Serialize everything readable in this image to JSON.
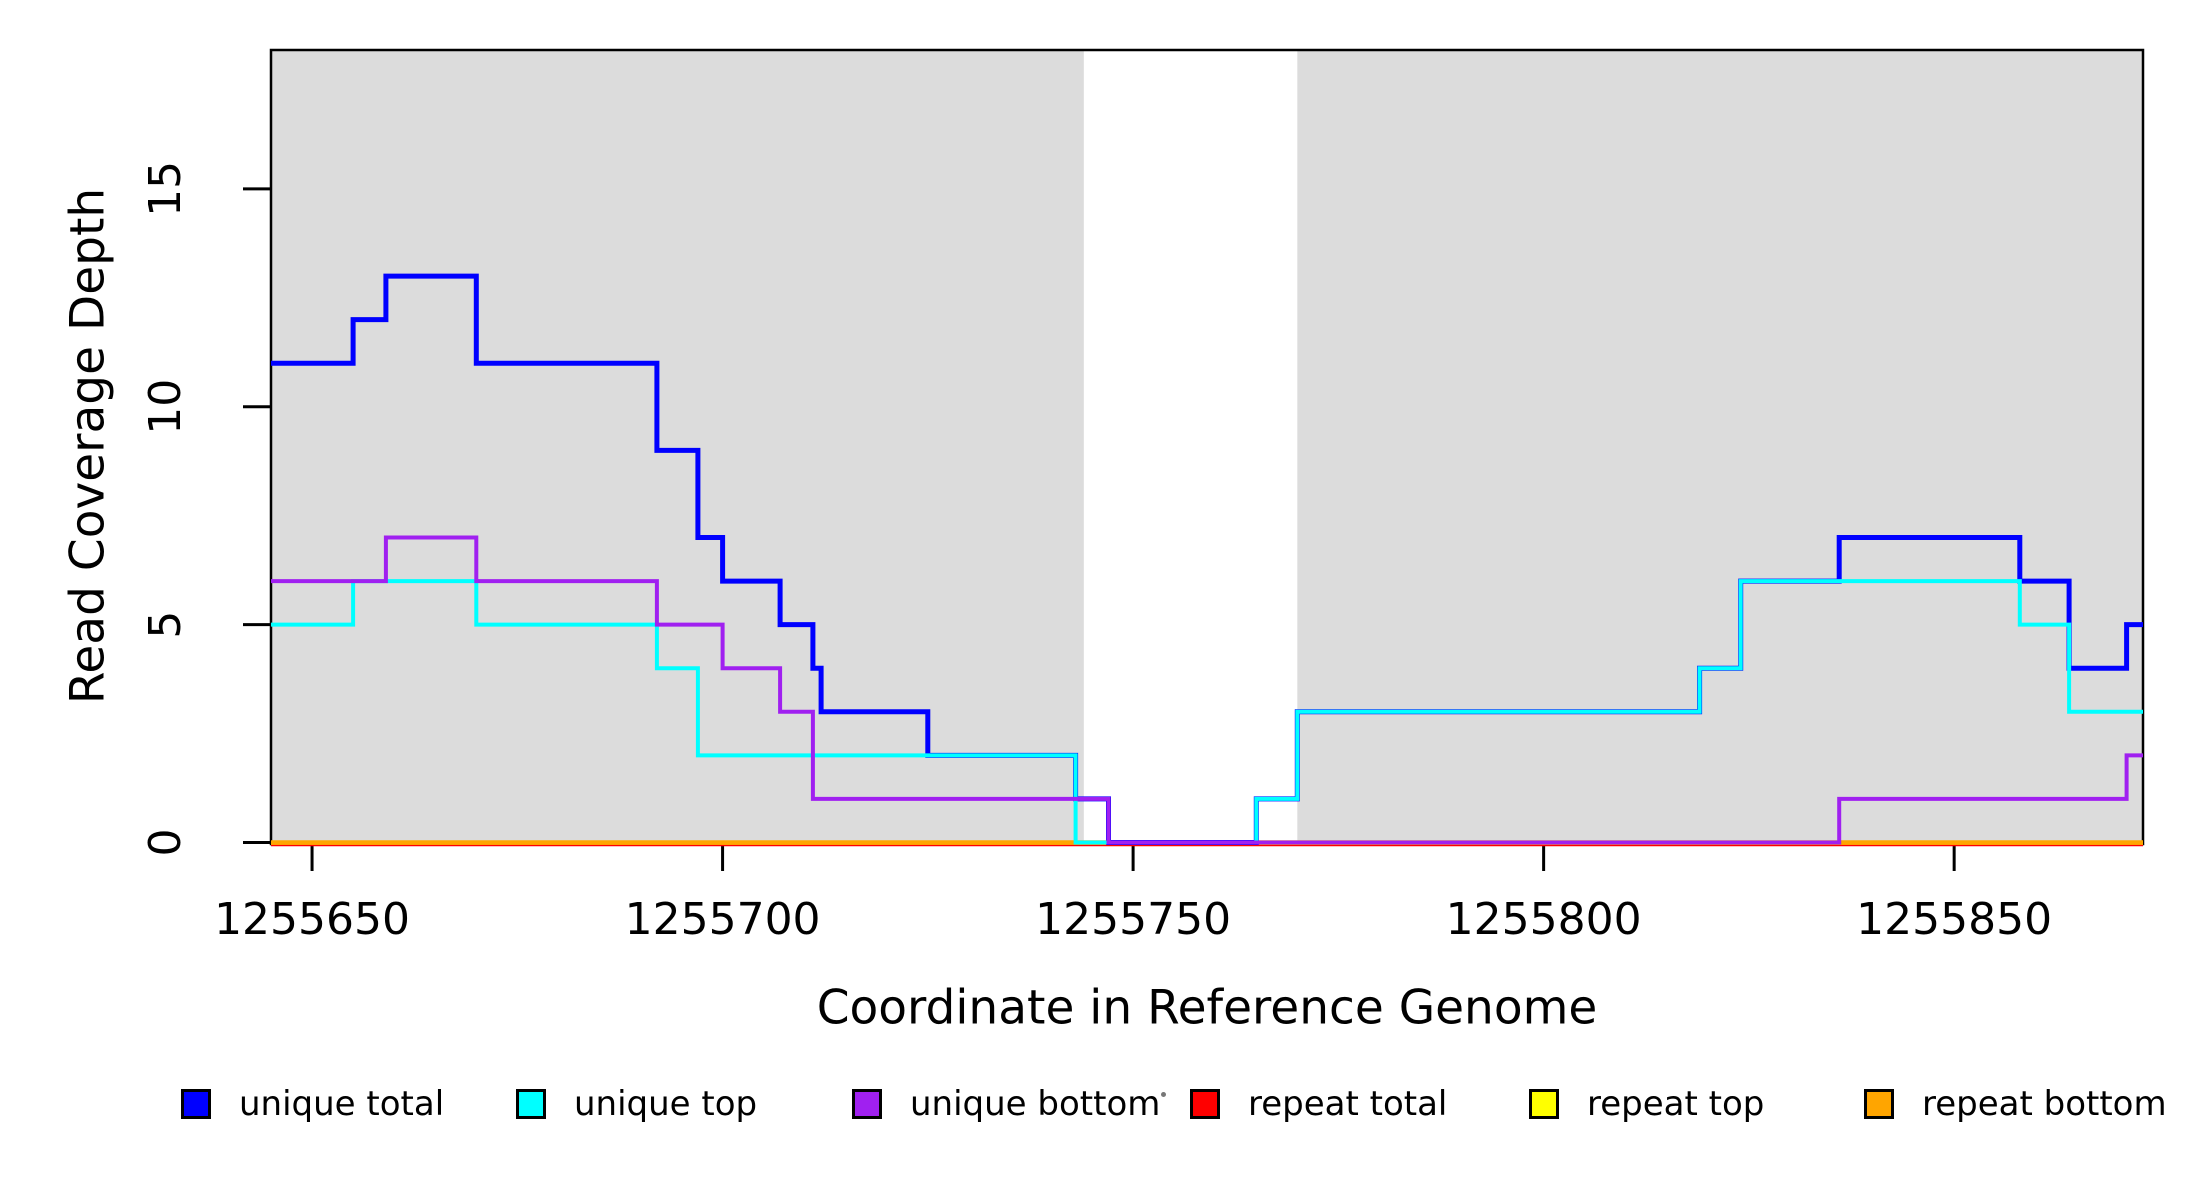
{
  "chart_data": {
    "type": "step-line",
    "title": "",
    "xlabel": "Coordinate in Reference Genome",
    "ylabel": "Read Coverage Depth",
    "x_domain": [
      1255645,
      1255873
    ],
    "y_domain": [
      0,
      18.2
    ],
    "x_ticks": [
      {
        "value": 1255650,
        "label": "1255650"
      },
      {
        "value": 1255700,
        "label": "1255700"
      },
      {
        "value": 1255750,
        "label": "1255750"
      },
      {
        "value": 1255800,
        "label": "1255800"
      },
      {
        "value": 1255850,
        "label": "1255850"
      }
    ],
    "y_ticks": [
      {
        "value": 0,
        "label": "0"
      },
      {
        "value": 5,
        "label": "5"
      },
      {
        "value": 10,
        "label": "10"
      },
      {
        "value": 15,
        "label": "15"
      }
    ],
    "grid": false,
    "shade_color": "#DCDCDC",
    "shaded_regions": [
      {
        "from": 1255645,
        "to": 1255744
      },
      {
        "from": 1255770,
        "to": 1255873
      }
    ],
    "series": [
      {
        "name": "repeat total",
        "color": "#FF0000",
        "points": [
          [
            1255645,
            0
          ],
          [
            1255873,
            0
          ]
        ]
      },
      {
        "name": "repeat top",
        "color": "#FFFF00",
        "points": [
          [
            1255645,
            0
          ],
          [
            1255873,
            0
          ]
        ]
      },
      {
        "name": "repeat bottom",
        "color": "#FFA500",
        "points": [
          [
            1255645,
            0
          ],
          [
            1255873,
            0
          ]
        ]
      },
      {
        "name": "unique total",
        "color": "#0000FF",
        "points": [
          [
            1255645,
            11
          ],
          [
            1255655,
            12
          ],
          [
            1255659,
            13
          ],
          [
            1255670,
            11
          ],
          [
            1255692,
            9
          ],
          [
            1255697,
            7
          ],
          [
            1255700,
            6
          ],
          [
            1255707,
            5
          ],
          [
            1255711,
            4
          ],
          [
            1255712,
            3
          ],
          [
            1255725,
            2
          ],
          [
            1255743,
            1
          ],
          [
            1255747,
            0
          ],
          [
            1255765,
            1
          ],
          [
            1255770,
            3
          ],
          [
            1255819,
            4
          ],
          [
            1255824,
            6
          ],
          [
            1255836,
            7
          ],
          [
            1255858,
            6
          ],
          [
            1255864,
            4
          ],
          [
            1255871,
            5
          ],
          [
            1255873,
            5
          ]
        ]
      },
      {
        "name": "unique top",
        "color": "#00FFFF",
        "points": [
          [
            1255645,
            5
          ],
          [
            1255655,
            6
          ],
          [
            1255670,
            5
          ],
          [
            1255692,
            4
          ],
          [
            1255697,
            2
          ],
          [
            1255743,
            0
          ],
          [
            1255765,
            1
          ],
          [
            1255770,
            3
          ],
          [
            1255819,
            4
          ],
          [
            1255824,
            6
          ],
          [
            1255858,
            5
          ],
          [
            1255864,
            3
          ],
          [
            1255873,
            3
          ]
        ]
      },
      {
        "name": "unique bottom",
        "color": "#A020F0",
        "points": [
          [
            1255645,
            6
          ],
          [
            1255659,
            7
          ],
          [
            1255670,
            6
          ],
          [
            1255692,
            5
          ],
          [
            1255700,
            4
          ],
          [
            1255707,
            3
          ],
          [
            1255711,
            1
          ],
          [
            1255747,
            0
          ],
          [
            1255836,
            1
          ],
          [
            1255871,
            2
          ],
          [
            1255873,
            2
          ]
        ]
      }
    ],
    "legend": {
      "position": "bottom",
      "items": [
        {
          "label": "unique total",
          "color": "#0000FF"
        },
        {
          "label": "unique top",
          "color": "#00FFFF"
        },
        {
          "label": "unique bottom",
          "color": "#A020F0"
        },
        {
          "label": "repeat total",
          "color": "#FF0000"
        },
        {
          "label": "repeat top",
          "color": "#FFFF00"
        },
        {
          "label": "repeat bottom",
          "color": "#FFA500"
        }
      ]
    }
  }
}
